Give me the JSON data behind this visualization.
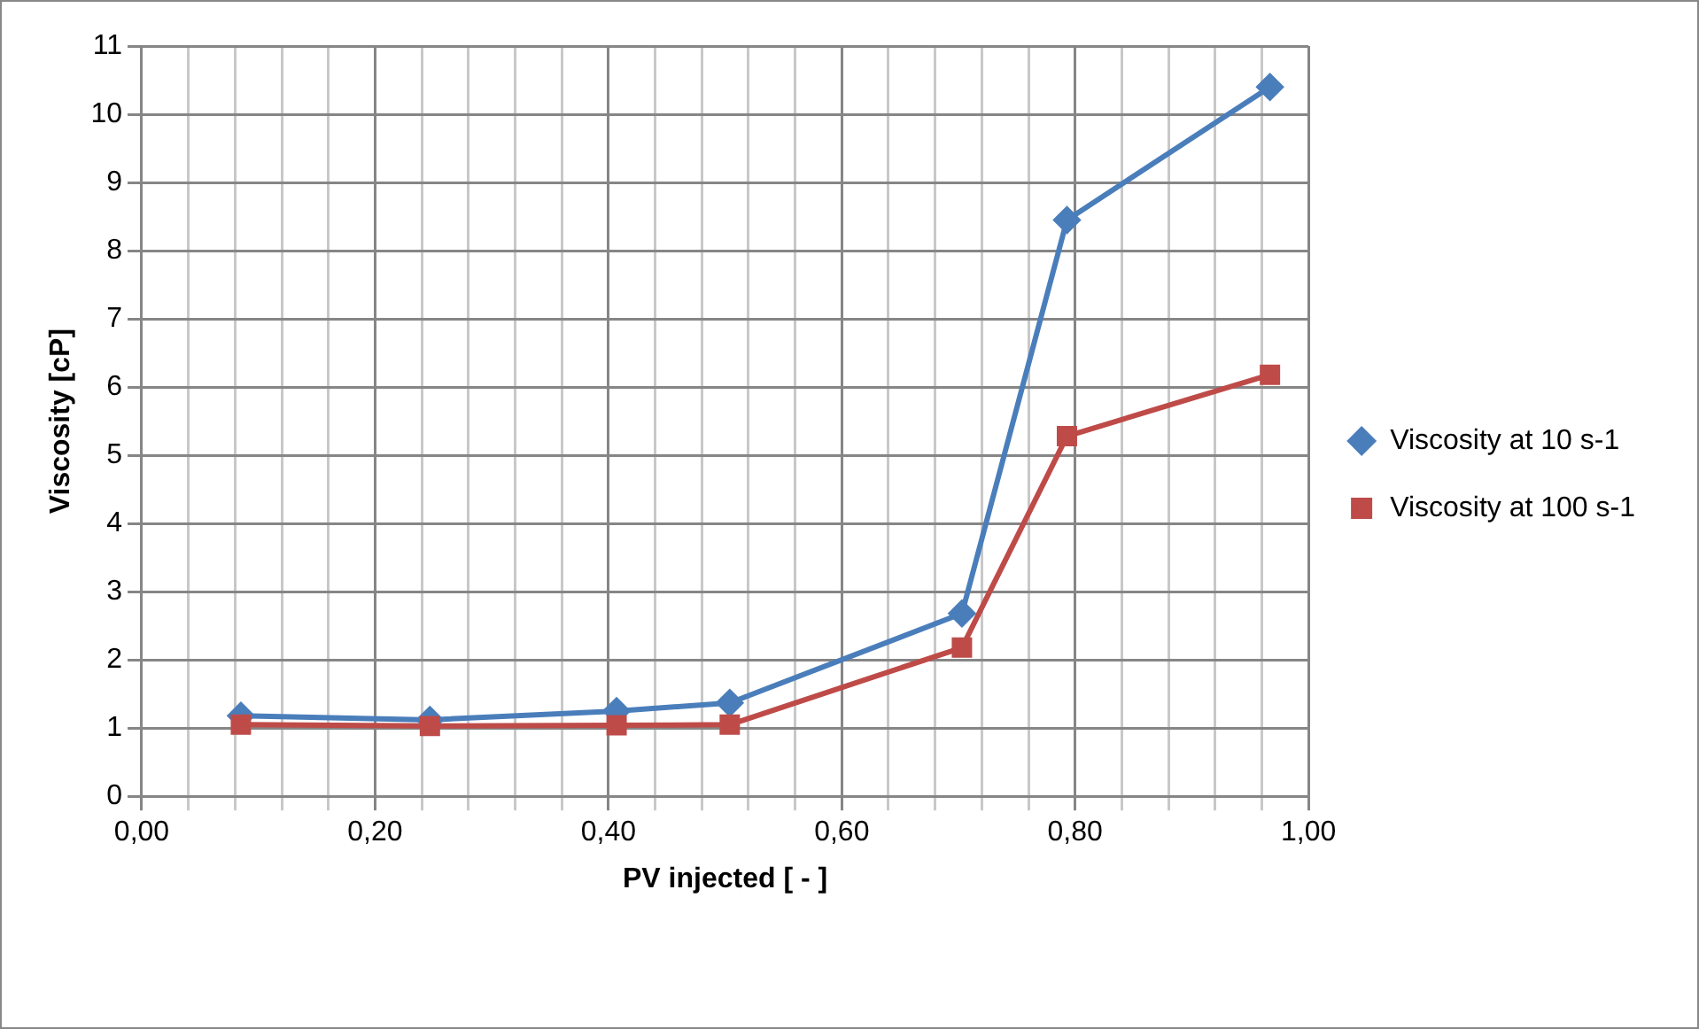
{
  "chart_data": {
    "type": "line",
    "xlabel": "PV injected [ - ]",
    "ylabel": "Viscosity [cP]",
    "xlim": [
      0,
      1
    ],
    "xticks": [
      {
        "value": 0,
        "label": "0,00"
      },
      {
        "value": 0.04,
        "label": null
      },
      {
        "value": 0.08,
        "label": null
      },
      {
        "value": 0.12,
        "label": null
      },
      {
        "value": 0.16,
        "label": null
      },
      {
        "value": 0.2,
        "label": "0,20"
      },
      {
        "value": 0.24,
        "label": null
      },
      {
        "value": 0.28,
        "label": null
      },
      {
        "value": 0.32,
        "label": null
      },
      {
        "value": 0.36,
        "label": null
      },
      {
        "value": 0.4,
        "label": "0,40"
      },
      {
        "value": 0.44,
        "label": null
      },
      {
        "value": 0.48,
        "label": null
      },
      {
        "value": 0.52,
        "label": null
      },
      {
        "value": 0.56,
        "label": null
      },
      {
        "value": 0.6,
        "label": "0,60"
      },
      {
        "value": 0.64,
        "label": null
      },
      {
        "value": 0.68,
        "label": null
      },
      {
        "value": 0.72,
        "label": null
      },
      {
        "value": 0.76,
        "label": null
      },
      {
        "value": 0.8,
        "label": "0,80"
      },
      {
        "value": 0.84,
        "label": null
      },
      {
        "value": 0.88,
        "label": null
      },
      {
        "value": 0.92,
        "label": null
      },
      {
        "value": 0.96,
        "label": null
      },
      {
        "value": 1,
        "label": "1,00"
      }
    ],
    "ylim": [
      0,
      11
    ],
    "yticks": [
      0,
      1,
      2,
      3,
      4,
      5,
      6,
      7,
      8,
      9,
      10,
      11
    ],
    "grid": true,
    "legend": "right",
    "line_style": "solid",
    "x": [
      0.085,
      0.247,
      0.407,
      0.504,
      0.703,
      0.793,
      0.967
    ],
    "series": [
      {
        "name": "Viscosity at 10 s-1",
        "color": "#4a7ebb",
        "marker": "diamond",
        "values": [
          1.18,
          1.12,
          1.25,
          1.37,
          2.68,
          8.45,
          10.4
        ]
      },
      {
        "name": "Viscosity at 100 s-1",
        "color": "#be4b48",
        "marker": "square",
        "values": [
          1.05,
          1.03,
          1.04,
          1.05,
          2.18,
          5.28,
          6.18
        ]
      }
    ]
  }
}
